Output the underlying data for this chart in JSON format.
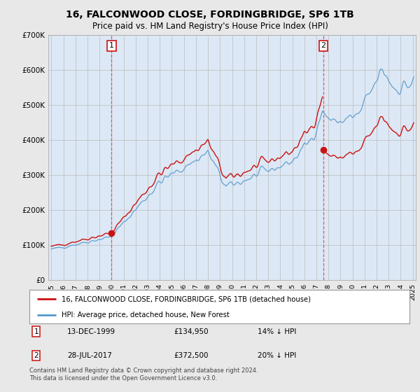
{
  "title": "16, FALCONWOOD CLOSE, FORDINGBRIDGE, SP6 1TB",
  "subtitle": "Price paid vs. HM Land Registry's House Price Index (HPI)",
  "legend_label1": "16, FALCONWOOD CLOSE, FORDINGBRIDGE, SP6 1TB (detached house)",
  "legend_label2": "HPI: Average price, detached house, New Forest",
  "annotation1_date": "13-DEC-1999",
  "annotation1_price": "£134,950",
  "annotation1_hpi": "14% ↓ HPI",
  "annotation2_date": "28-JUL-2017",
  "annotation2_price": "£372,500",
  "annotation2_hpi": "20% ↓ HPI",
  "footer": "Contains HM Land Registry data © Crown copyright and database right 2024.\nThis data is licensed under the Open Government Licence v3.0.",
  "line1_color": "#cc1111",
  "line2_color": "#5599cc",
  "plot_bg_color": "#dce8f5",
  "background_color": "#e8e8e8",
  "legend_bg": "#ffffff",
  "ann_line_color": "#dd4444",
  "ylim": [
    0,
    700000
  ],
  "yticks": [
    0,
    100000,
    200000,
    300000,
    400000,
    500000,
    600000,
    700000
  ],
  "ytick_labels": [
    "£0",
    "£100K",
    "£200K",
    "£300K",
    "£400K",
    "£500K",
    "£600K",
    "£700K"
  ],
  "sale1_year": 2000.0,
  "sale1_price": 134950,
  "sale2_year": 2017.58,
  "sale2_price": 372500
}
